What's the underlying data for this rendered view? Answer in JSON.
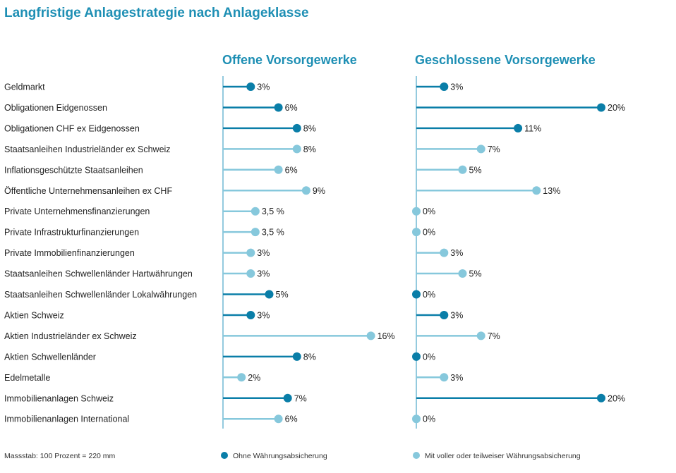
{
  "title": "Langfristige Anlagestrategie nach Anlageklasse",
  "footer": {
    "scale_note": "Massstab: 100 Prozent = 220 mm",
    "legend_dark": "Ohne Währungsabsicherung",
    "legend_light": "Mit voller oder teilweiser Währungsabsicherung"
  },
  "colors": {
    "dark": "#0a7ea8",
    "light": "#86c8dc",
    "title": "#1e8fb4"
  },
  "chart_data": {
    "type": "bar",
    "title": "Langfristige Anlagestrategie nach Anlageklasse",
    "categories": [
      "Geldmarkt",
      "Obligationen Eidgenossen",
      "Obligationen CHF ex Eidgenossen",
      "Staatsanleihen Industrieländer ex Schweiz",
      "Inflationsgeschützte Staatsanleihen",
      "Öffentliche Unternehmensanleihen ex CHF",
      "Private Unternehmensfinanzierungen",
      "Private Infrastrukturfinanzierungen",
      "Private Immobilienfinanzierungen",
      "Staatsanleihen Schwellenländer Hartwährungen",
      "Staatsanleihen Schwellenländer Lokalwährungen",
      "Aktien Schweiz",
      "Aktien Industrieländer ex Schweiz",
      "Aktien Schwellenländer",
      "Edelmetalle",
      "Immobilienanlagen Schweiz",
      "Immobilienanlagen International"
    ],
    "hedging": [
      "dark",
      "dark",
      "dark",
      "light",
      "light",
      "light",
      "light",
      "light",
      "light",
      "light",
      "dark",
      "dark",
      "light",
      "dark",
      "light",
      "dark",
      "light"
    ],
    "series": [
      {
        "name": "Offene Vorsorgewerke",
        "values": [
          3,
          6,
          8,
          8,
          6,
          9,
          3.5,
          3.5,
          3,
          3,
          5,
          3,
          16,
          8,
          2,
          7,
          6
        ],
        "labels": [
          "3%",
          "6%",
          "8%",
          "8%",
          "6%",
          "9%",
          "3,5 %",
          "3,5 %",
          "3%",
          "3%",
          "5%",
          "3%",
          "16%",
          "8%",
          "2%",
          "7%",
          "6%"
        ]
      },
      {
        "name": "Geschlossene Vorsorgewerke",
        "values": [
          3,
          20,
          11,
          7,
          5,
          13,
          0,
          0,
          3,
          5,
          0,
          3,
          7,
          0,
          3,
          20,
          0
        ],
        "labels": [
          "3%",
          "20%",
          "11%",
          "7%",
          "5%",
          "13%",
          "0%",
          "0%",
          "3%",
          "5%",
          "0%",
          "3%",
          "7%",
          "0%",
          "3%",
          "20%",
          "0%"
        ]
      }
    ],
    "legend": [
      "Ohne Währungsabsicherung",
      "Mit voller oder teilweiser Währungsabsicherung"
    ],
    "legend_position": "bottom",
    "grid": false
  }
}
